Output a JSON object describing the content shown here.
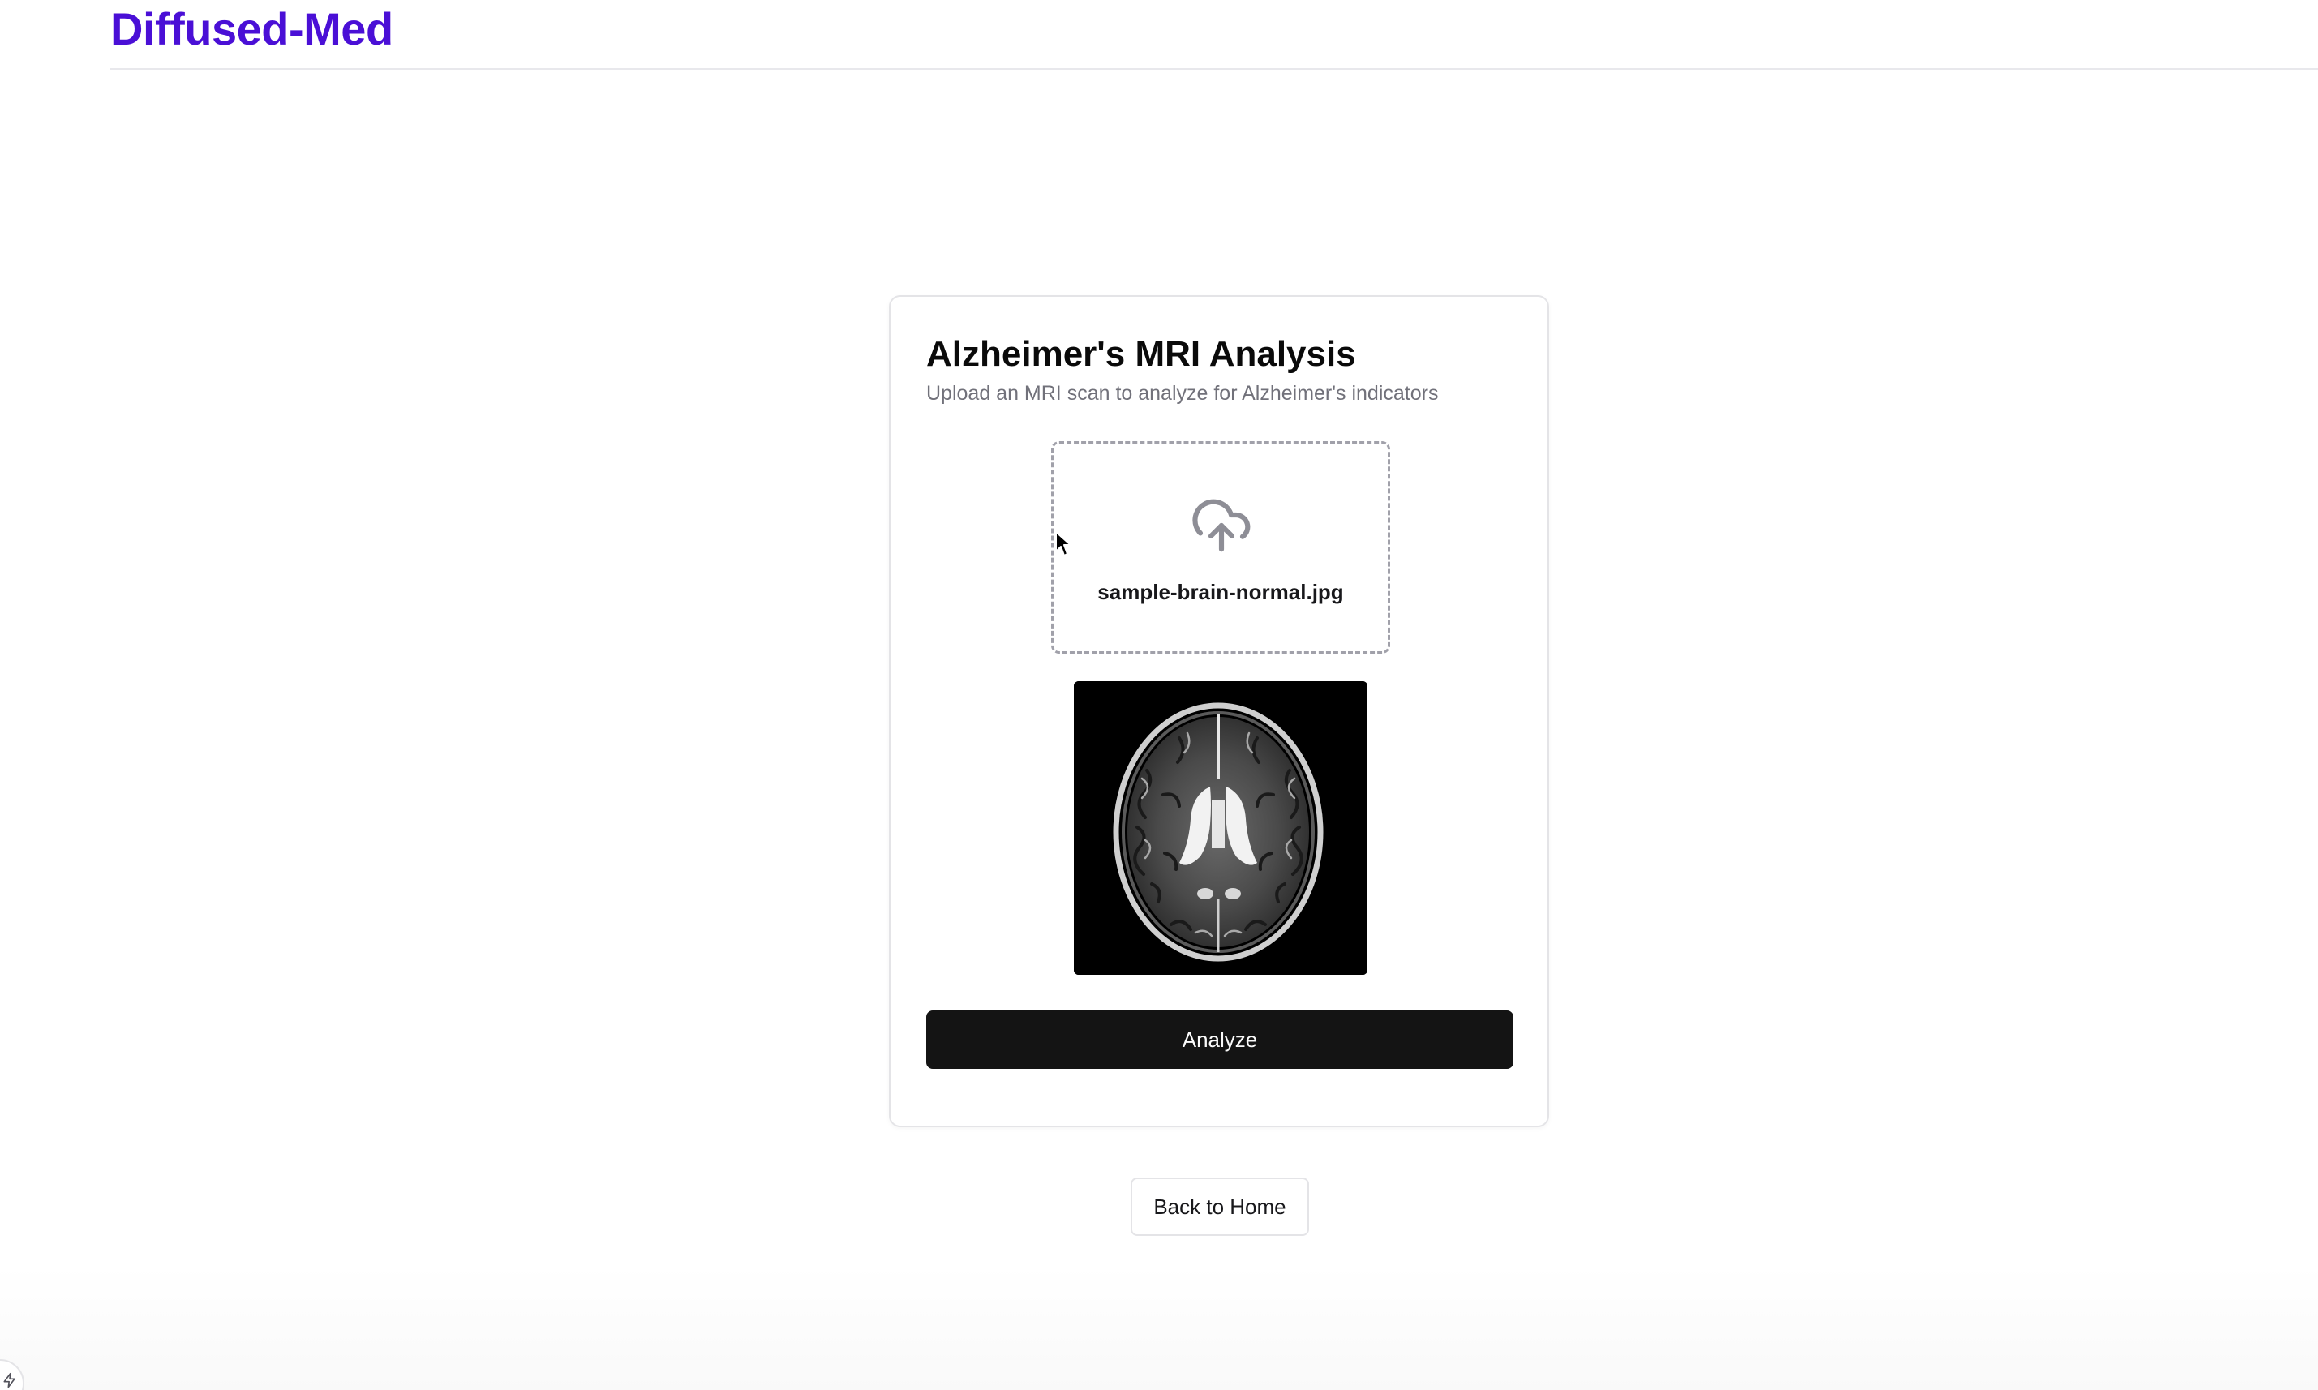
{
  "header": {
    "brand": "Diffused-Med"
  },
  "card": {
    "title": "Alzheimer's MRI Analysis",
    "subtitle": "Upload an MRI scan to analyze for Alzheimer's indicators",
    "dropzone": {
      "icon": "cloud-upload-icon",
      "file_name": "sample-brain-normal.jpg"
    },
    "preview": {
      "image": "brain-mri-preview"
    },
    "analyze_label": "Analyze"
  },
  "back_label": "Back to Home",
  "colors": {
    "brand": "#4a0fd6",
    "primary_button": "#141414",
    "muted_text": "#71717a",
    "border": "#e4e4e7"
  }
}
